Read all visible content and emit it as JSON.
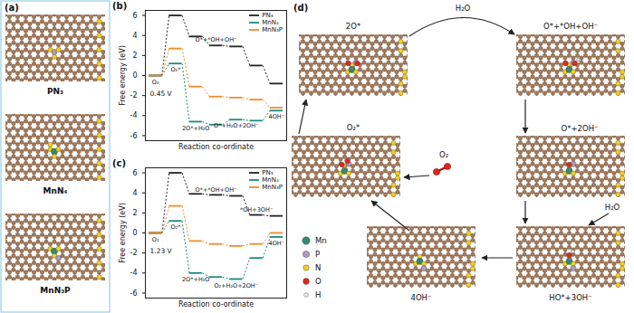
{
  "panel_a": {
    "label": "(a)",
    "structures": [
      "PN₃",
      "MnN₄",
      "MnN₃P"
    ]
  },
  "chart_data": [
    {
      "type": "step",
      "title": "(b)",
      "annotation": "0.45 V",
      "x_label": "Reaction co-ordinate",
      "y_label": "Free energy (eV)",
      "categories": [
        "O₂",
        "O₂*",
        "2O*+H₂O",
        "O*+*OH+OH⁻",
        "O*+H₂O+2OH⁻",
        null,
        "4OH⁻"
      ],
      "series": [
        {
          "name": "PN₃",
          "color": "#222222",
          "values": [
            0,
            6.0,
            3.9,
            3.0,
            2.9,
            1.0,
            -0.8
          ]
        },
        {
          "name": "MnN₄",
          "color": "#1a8a7a",
          "values": [
            0,
            1.2,
            -4.6,
            -4.9,
            -4.4,
            -4.5,
            -3.5
          ]
        },
        {
          "name": "MnN₃P",
          "color": "#f28c28",
          "values": [
            0,
            2.7,
            -1.1,
            -2.1,
            -2.2,
            -2.4,
            -3.2
          ]
        }
      ],
      "ylim": [
        -6.5,
        6.5
      ],
      "yticks": [
        -6,
        -4,
        -2,
        0,
        2,
        4,
        6
      ],
      "tick_labels": "y",
      "legend": "top-right"
    },
    {
      "type": "step",
      "title": "(c)",
      "annotation": "1.23 V",
      "x_label": "Reaction co-ordinate",
      "y_label": "Free energy (eV)",
      "categories": [
        "O₂",
        "O₂*",
        "2O*+H₂O",
        "O*+*OH+OH⁻",
        "O₂+H₂O+2OH⁻",
        "*OH+3OH⁻",
        "4OH⁻"
      ],
      "series": [
        {
          "name": "PN₃",
          "color": "#222222",
          "values": [
            0,
            6.0,
            3.9,
            3.8,
            3.7,
            1.8,
            1.7
          ]
        },
        {
          "name": "MnN₄",
          "color": "#1a8a7a",
          "values": [
            0,
            1.2,
            -4.0,
            -4.4,
            -4.6,
            -2.5,
            -0.4
          ]
        },
        {
          "name": "MnN₃P",
          "color": "#f28c28",
          "values": [
            0,
            2.7,
            -0.8,
            -1.1,
            -1.3,
            -1.1,
            0.0
          ]
        }
      ],
      "ylim": [
        -6.5,
        6.5
      ],
      "yticks": [
        -6,
        -4,
        -2,
        0,
        2,
        4,
        6
      ],
      "tick_labels": "y",
      "legend": "top-right"
    }
  ],
  "panel_d": {
    "label": "(d)",
    "states": [
      "2O*",
      "O*+*OH+OH⁻",
      "O*+2OH⁻",
      "HO*+3OH⁻",
      "4OH⁻",
      "O₂*"
    ],
    "reactants": {
      "top": "H₂O",
      "right": "H₂O",
      "incoming": "O₂"
    },
    "atom_legend": [
      "Mn",
      "P",
      "N",
      "O",
      "H"
    ]
  }
}
